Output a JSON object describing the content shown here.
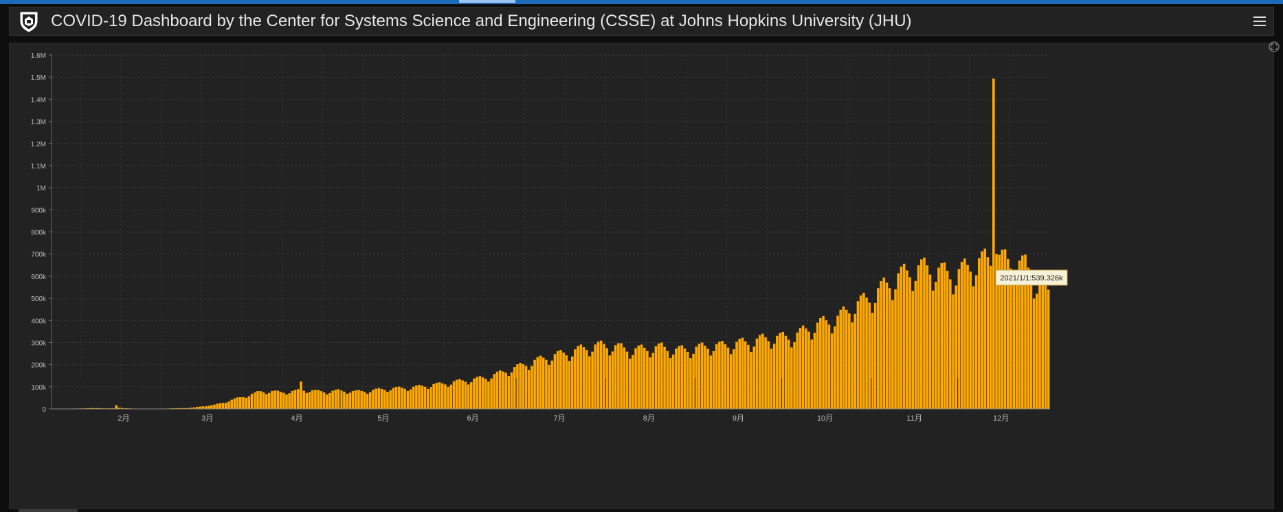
{
  "header": {
    "title": "COVID-19 Dashboard by the Center for Systems Science and Engineering (CSSE) at Johns Hopkins University (JHU)"
  },
  "icons": {
    "logo": "jhu-shield-logo",
    "menu": "hamburger-menu-icon",
    "expand": "expand-icon"
  },
  "colors": {
    "bar": "#ffa900",
    "background": "#222222",
    "tooltip_bg": "#f7f1d8"
  },
  "tooltip": {
    "text": "2021/1/1:539.326k"
  },
  "chart_data": {
    "type": "bar",
    "title": "",
    "xlabel": "",
    "ylabel": "",
    "ylim": [
      0,
      1600000
    ],
    "yticks": [
      0,
      100000,
      200000,
      300000,
      400000,
      500000,
      600000,
      700000,
      800000,
      900000,
      1000000,
      1100000,
      1200000,
      1300000,
      1400000,
      1500000,
      1600000
    ],
    "ytick_labels": [
      "0",
      "100k",
      "200k",
      "300k",
      "400k",
      "500k",
      "600k",
      "700k",
      "800k",
      "900k",
      "1M",
      "1.1M",
      "1.2M",
      "1.3M",
      "1.4M",
      "1.5M",
      "1.6M"
    ],
    "xtick_labels": [
      "2月",
      "3月",
      "4月",
      "5月",
      "6月",
      "7月",
      "8月",
      "9月",
      "10月",
      "11月",
      "12月"
    ],
    "grid": true,
    "legend": "none",
    "x_start": "2020-01-22",
    "x_end": "2021-01-01",
    "anchors": [
      [
        "2020-01-22",
        500
      ],
      [
        "2020-01-31",
        2000
      ],
      [
        "2020-02-04",
        3500
      ],
      [
        "2020-02-12",
        2500
      ],
      [
        "2020-02-13",
        15000
      ],
      [
        "2020-02-14",
        5000
      ],
      [
        "2020-02-20",
        1000
      ],
      [
        "2020-02-28",
        1500
      ],
      [
        "2020-03-05",
        3000
      ],
      [
        "2020-03-10",
        5000
      ],
      [
        "2020-03-14",
        12000
      ],
      [
        "2020-03-18",
        18000
      ],
      [
        "2020-03-22",
        32000
      ],
      [
        "2020-03-26",
        48000
      ],
      [
        "2020-03-30",
        62000
      ],
      [
        "2020-04-03",
        78000
      ],
      [
        "2020-04-07",
        78000
      ],
      [
        "2020-04-10",
        75000
      ],
      [
        "2020-04-13",
        76000
      ],
      [
        "2020-04-16",
        82000
      ],
      [
        "2020-04-17",
        120000
      ],
      [
        "2020-04-18",
        85000
      ],
      [
        "2020-04-22",
        80000
      ],
      [
        "2020-04-26",
        76000
      ],
      [
        "2020-04-30",
        82000
      ],
      [
        "2020-05-05",
        78000
      ],
      [
        "2020-05-10",
        80000
      ],
      [
        "2020-05-15",
        88000
      ],
      [
        "2020-05-20",
        92000
      ],
      [
        "2020-05-25",
        95000
      ],
      [
        "2020-05-31",
        105000
      ],
      [
        "2020-06-05",
        112000
      ],
      [
        "2020-06-10",
        122000
      ],
      [
        "2020-06-15",
        130000
      ],
      [
        "2020-06-20",
        140000
      ],
      [
        "2020-06-25",
        160000
      ],
      [
        "2020-06-30",
        182000
      ],
      [
        "2020-07-05",
        205000
      ],
      [
        "2020-07-10",
        225000
      ],
      [
        "2020-07-15",
        242000
      ],
      [
        "2020-07-20",
        255000
      ],
      [
        "2020-07-25",
        275000
      ],
      [
        "2020-07-31",
        285000
      ],
      [
        "2020-08-05",
        275000
      ],
      [
        "2020-08-10",
        262000
      ],
      [
        "2020-08-15",
        270000
      ],
      [
        "2020-08-20",
        275000
      ],
      [
        "2020-08-25",
        262000
      ],
      [
        "2020-08-31",
        268000
      ],
      [
        "2020-09-05",
        280000
      ],
      [
        "2020-09-10",
        282000
      ],
      [
        "2020-09-15",
        292000
      ],
      [
        "2020-09-20",
        300000
      ],
      [
        "2020-09-25",
        315000
      ],
      [
        "2020-09-30",
        318000
      ],
      [
        "2020-10-05",
        325000
      ],
      [
        "2020-10-10",
        360000
      ],
      [
        "2020-10-15",
        385000
      ],
      [
        "2020-10-20",
        405000
      ],
      [
        "2020-10-25",
        455000
      ],
      [
        "2020-10-31",
        495000
      ],
      [
        "2020-11-05",
        545000
      ],
      [
        "2020-11-10",
        590000
      ],
      [
        "2020-11-15",
        620000
      ],
      [
        "2020-11-20",
        630000
      ],
      [
        "2020-11-25",
        610000
      ],
      [
        "2020-11-30",
        600000
      ],
      [
        "2020-12-05",
        640000
      ],
      [
        "2020-12-10",
        665000
      ],
      [
        "2020-12-15",
        670000
      ],
      [
        "2020-12-20",
        650000
      ],
      [
        "2020-12-24",
        640000
      ],
      [
        "2020-12-28",
        560000
      ],
      [
        "2021-01-01",
        539326
      ]
    ],
    "spikes": [
      [
        "2020-12-13",
        1493000
      ],
      [
        "2020-12-14",
        700000
      ]
    ]
  }
}
